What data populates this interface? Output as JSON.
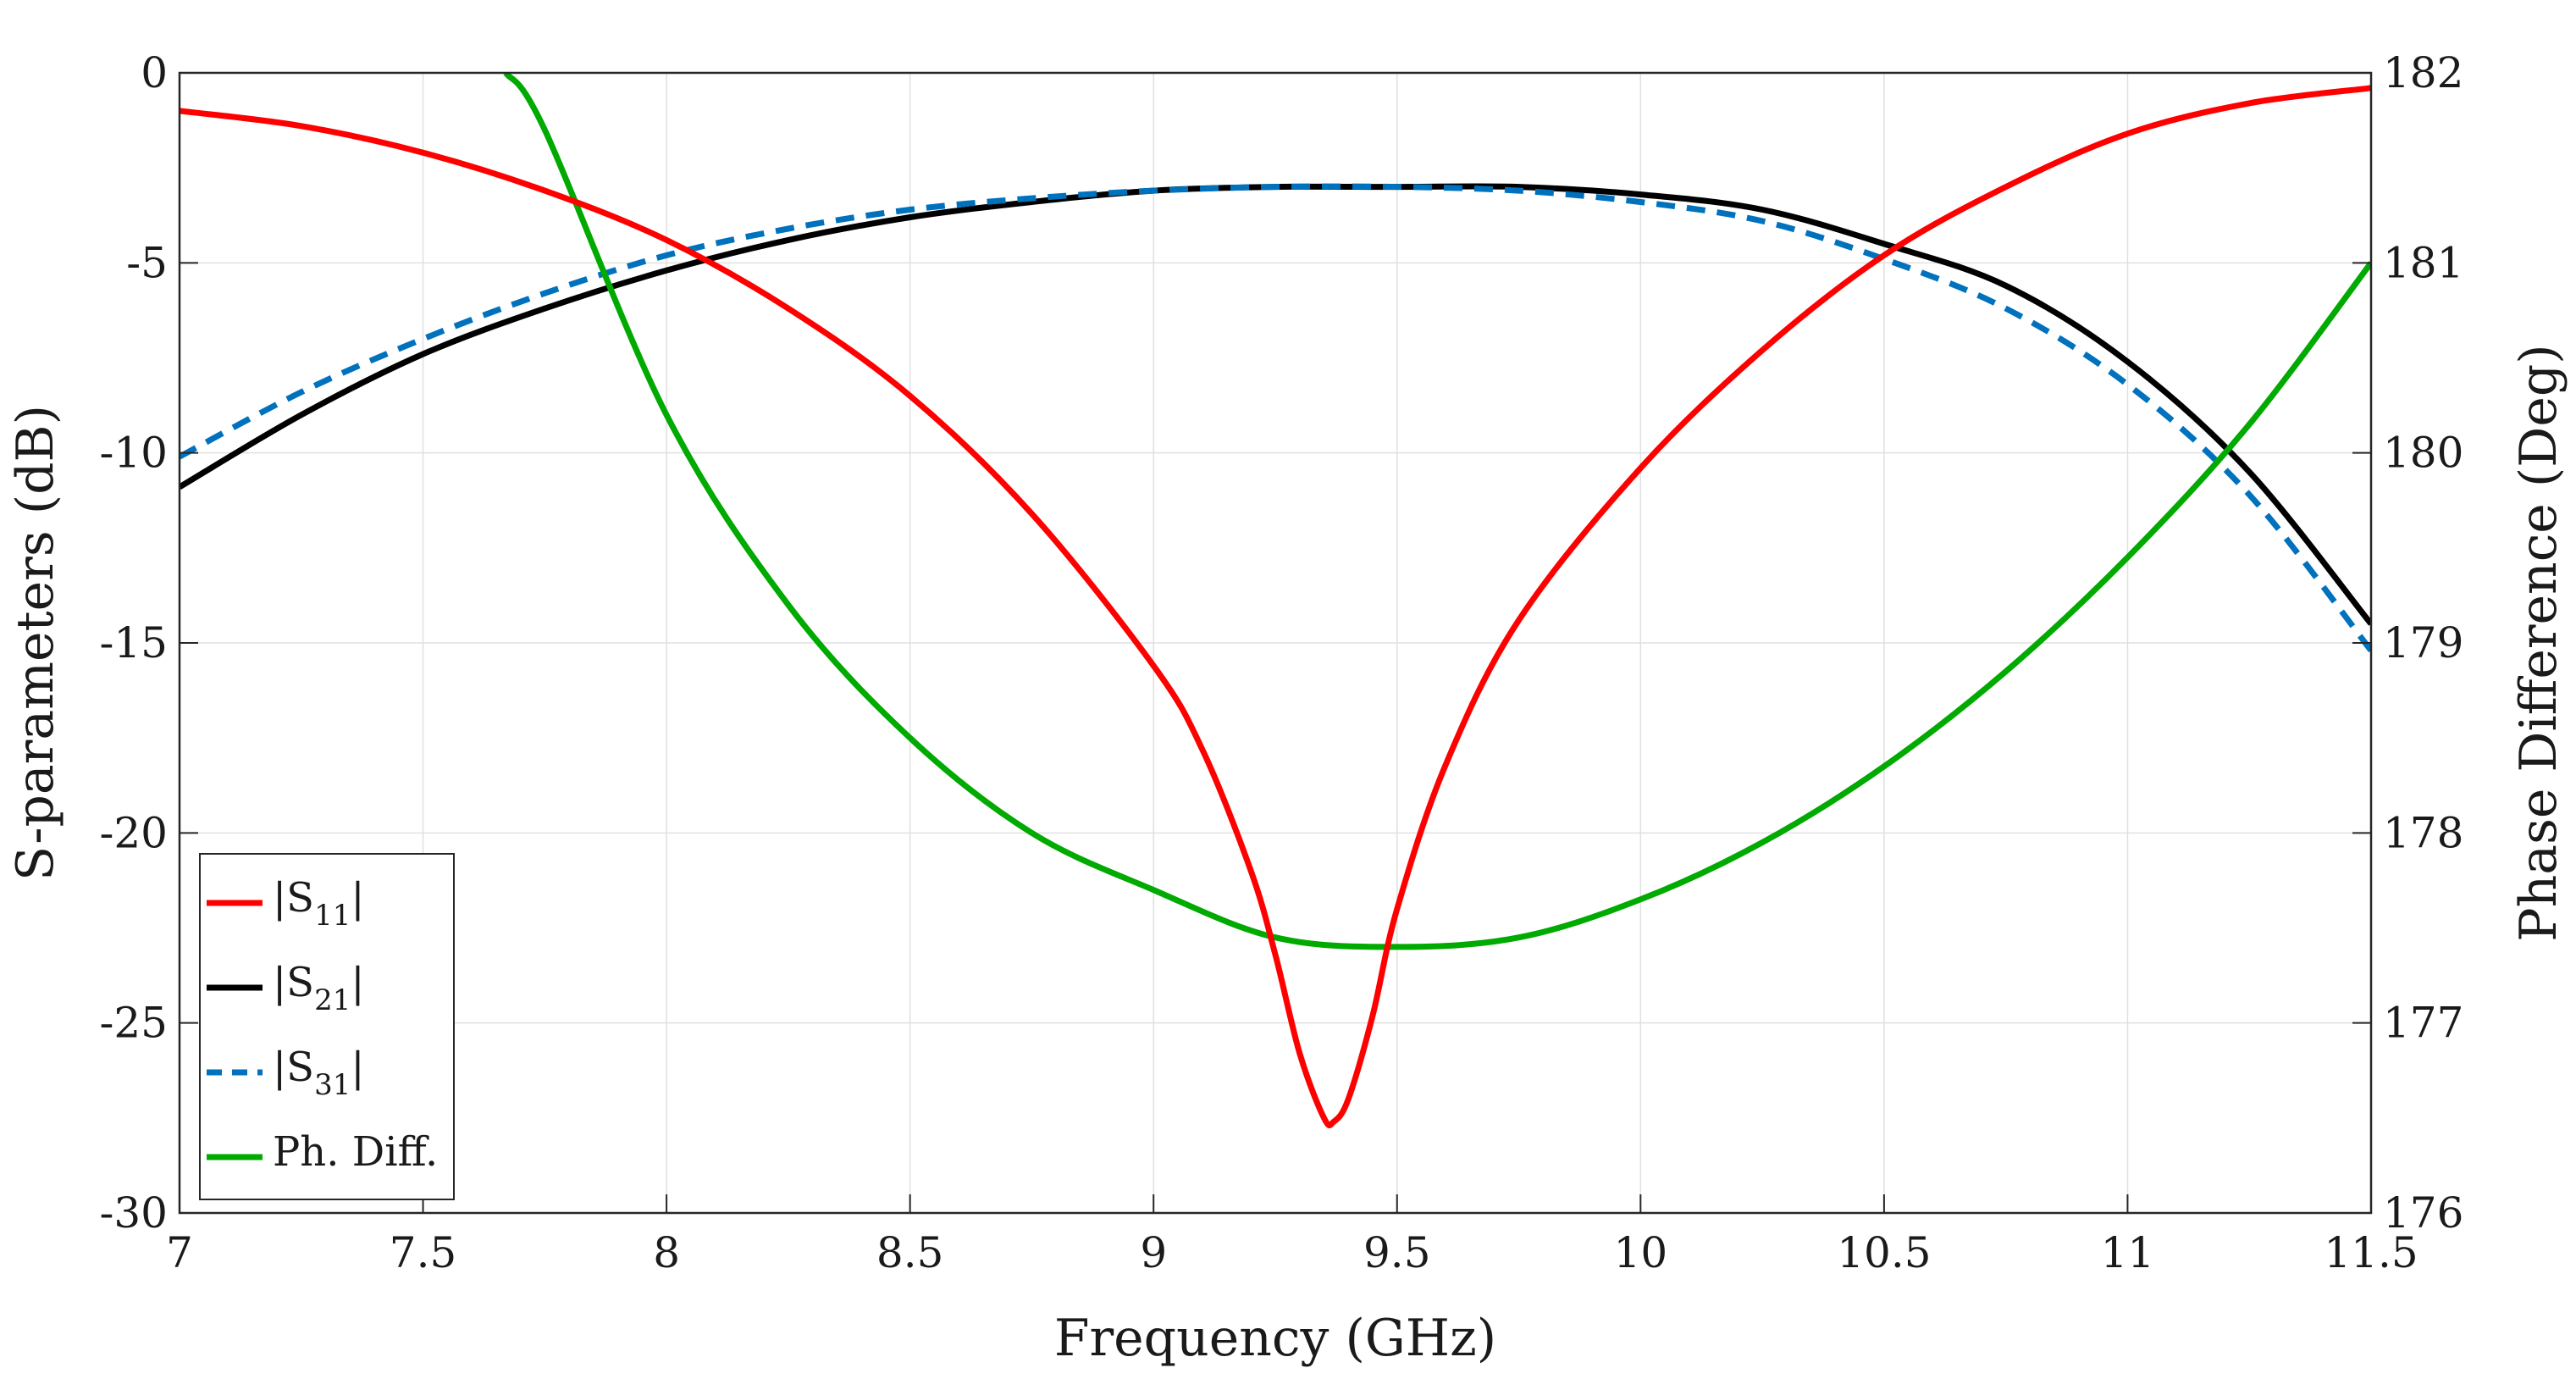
{
  "chart_data": {
    "type": "line",
    "title": "",
    "xlabel": "Frequency (GHz)",
    "ylabel": "S-parameters (dB)",
    "ylabel_right": "Phase Difference (Deg)",
    "xlim": [
      7,
      11.5
    ],
    "ylim": [
      -30,
      0
    ],
    "ylim_right": [
      176,
      182
    ],
    "grid": true,
    "x_ticks": [
      "7",
      "7.5",
      "8",
      "8.5",
      "9",
      "9.5",
      "10",
      "10.5",
      "11",
      "11.5"
    ],
    "y_ticks": [
      "0",
      "-5",
      "-10",
      "-15",
      "-20",
      "-25",
      "-30"
    ],
    "y_ticks_right": [
      "182",
      "181",
      "180",
      "179",
      "178",
      "177",
      "176"
    ],
    "legend_position": "bottom-left",
    "legend": [
      {
        "prefix": "|S",
        "sub": "11",
        "suffix": "|",
        "color": "#ff0000",
        "dash": "solid"
      },
      {
        "prefix": "|S",
        "sub": "21",
        "suffix": "|",
        "color": "#000000",
        "dash": "solid"
      },
      {
        "prefix": "|S",
        "sub": "31",
        "suffix": "|",
        "color": "#0072bd",
        "dash": "dashed"
      },
      {
        "prefix": "Ph. Diff.",
        "sub": "",
        "suffix": "",
        "color": "#00aa00",
        "dash": "solid"
      }
    ],
    "series": [
      {
        "name": "|S11|",
        "axis": "left",
        "color": "#ff0000",
        "dash": "solid",
        "x": [
          7.0,
          7.25,
          7.5,
          7.75,
          8.0,
          8.25,
          8.5,
          8.75,
          9.0,
          9.1,
          9.2,
          9.25,
          9.3,
          9.35,
          9.37,
          9.4,
          9.45,
          9.5,
          9.6,
          9.75,
          10.0,
          10.25,
          10.5,
          10.75,
          11.0,
          11.25,
          11.5
        ],
        "values": [
          -1.0,
          -1.4,
          -2.1,
          -3.1,
          -4.4,
          -6.2,
          -8.5,
          -11.6,
          -15.6,
          -17.8,
          -21.0,
          -23.2,
          -25.8,
          -27.5,
          -27.6,
          -27.0,
          -24.8,
          -22.0,
          -18.2,
          -14.4,
          -10.4,
          -7.3,
          -4.8,
          -3.0,
          -1.6,
          -0.8,
          -0.4
        ]
      },
      {
        "name": "|S21|",
        "axis": "left",
        "color": "#000000",
        "dash": "solid",
        "x": [
          7.0,
          7.25,
          7.5,
          7.75,
          8.0,
          8.25,
          8.5,
          8.75,
          9.0,
          9.25,
          9.5,
          9.75,
          10.0,
          10.25,
          10.5,
          10.75,
          11.0,
          11.25,
          11.5
        ],
        "values": [
          -10.9,
          -9.0,
          -7.4,
          -6.2,
          -5.2,
          -4.4,
          -3.8,
          -3.4,
          -3.1,
          -3.0,
          -3.0,
          -3.0,
          -3.2,
          -3.6,
          -4.5,
          -5.6,
          -7.6,
          -10.5,
          -14.5
        ]
      },
      {
        "name": "|S31|",
        "axis": "left",
        "color": "#0072bd",
        "dash": "dashed",
        "x": [
          7.0,
          7.25,
          7.5,
          7.75,
          8.0,
          8.25,
          8.5,
          8.75,
          9.0,
          9.25,
          9.5,
          9.75,
          10.0,
          10.25,
          10.5,
          10.75,
          11.0,
          11.25,
          11.5
        ],
        "values": [
          -10.1,
          -8.4,
          -7.0,
          -5.8,
          -4.8,
          -4.1,
          -3.6,
          -3.3,
          -3.1,
          -3.0,
          -3.0,
          -3.1,
          -3.4,
          -3.9,
          -4.9,
          -6.2,
          -8.2,
          -11.1,
          -15.2
        ]
      },
      {
        "name": "Ph. Diff.",
        "axis": "right",
        "color": "#00aa00",
        "dash": "solid",
        "x": [
          7.67,
          7.75,
          8.0,
          8.25,
          8.5,
          8.75,
          9.0,
          9.25,
          9.5,
          9.75,
          10.0,
          10.25,
          10.5,
          10.75,
          11.0,
          11.25,
          11.5
        ],
        "values": [
          182.0,
          181.7,
          180.2,
          179.2,
          178.5,
          178.0,
          177.7,
          177.45,
          177.4,
          177.45,
          177.65,
          177.95,
          178.35,
          178.85,
          179.45,
          180.15,
          181.0
        ]
      }
    ]
  }
}
